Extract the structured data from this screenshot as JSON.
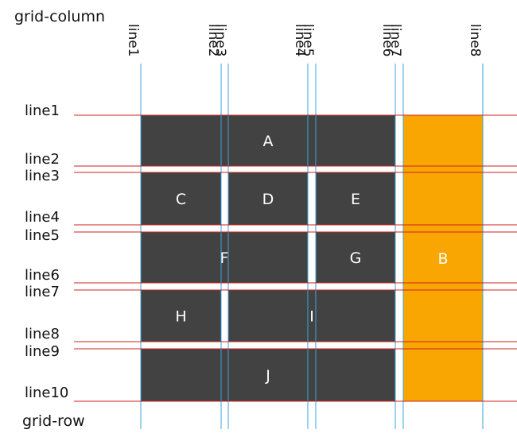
{
  "diagram": {
    "title_top": "grid-column",
    "title_bottom": "grid-row",
    "colors": {
      "cell": "#424242",
      "highlight": "#f9a602",
      "row_line": "#cc2020",
      "col_line": "#3aa6d8",
      "cell_text": "#ffffff"
    },
    "column_lines": [
      {
        "label": "line1"
      },
      {
        "label": "line2"
      },
      {
        "label": "line3"
      },
      {
        "label": "line4"
      },
      {
        "label": "line5"
      },
      {
        "label": "line6"
      },
      {
        "label": "line7"
      },
      {
        "label": "line8"
      }
    ],
    "row_lines": [
      {
        "label": "line1"
      },
      {
        "label": "line2"
      },
      {
        "label": "line3"
      },
      {
        "label": "line4"
      },
      {
        "label": "line5"
      },
      {
        "label": "line6"
      },
      {
        "label": "line7"
      },
      {
        "label": "line8"
      },
      {
        "label": "line9"
      },
      {
        "label": "line10"
      }
    ],
    "items": [
      {
        "label": "A",
        "col_start": 1,
        "col_end": 6,
        "row_start": 1,
        "row_end": 2,
        "color": "#424242"
      },
      {
        "label": "B",
        "col_start": 7,
        "col_end": 8,
        "row_start": 1,
        "row_end": 10,
        "color": "#f9a602"
      },
      {
        "label": "C",
        "col_start": 1,
        "col_end": 2,
        "row_start": 3,
        "row_end": 4,
        "color": "#424242"
      },
      {
        "label": "D",
        "col_start": 3,
        "col_end": 4,
        "row_start": 3,
        "row_end": 4,
        "color": "#424242"
      },
      {
        "label": "E",
        "col_start": 5,
        "col_end": 6,
        "row_start": 3,
        "row_end": 4,
        "color": "#424242"
      },
      {
        "label": "F",
        "col_start": 1,
        "col_end": 4,
        "row_start": 5,
        "row_end": 6,
        "color": "#424242"
      },
      {
        "label": "G",
        "col_start": 5,
        "col_end": 6,
        "row_start": 5,
        "row_end": 6,
        "color": "#424242"
      },
      {
        "label": "H",
        "col_start": 1,
        "col_end": 2,
        "row_start": 7,
        "row_end": 8,
        "color": "#424242"
      },
      {
        "label": "I",
        "col_start": 3,
        "col_end": 6,
        "row_start": 7,
        "row_end": 8,
        "color": "#424242"
      },
      {
        "label": "J",
        "col_start": 1,
        "col_end": 6,
        "row_start": 9,
        "row_end": 10,
        "color": "#424242"
      }
    ]
  }
}
